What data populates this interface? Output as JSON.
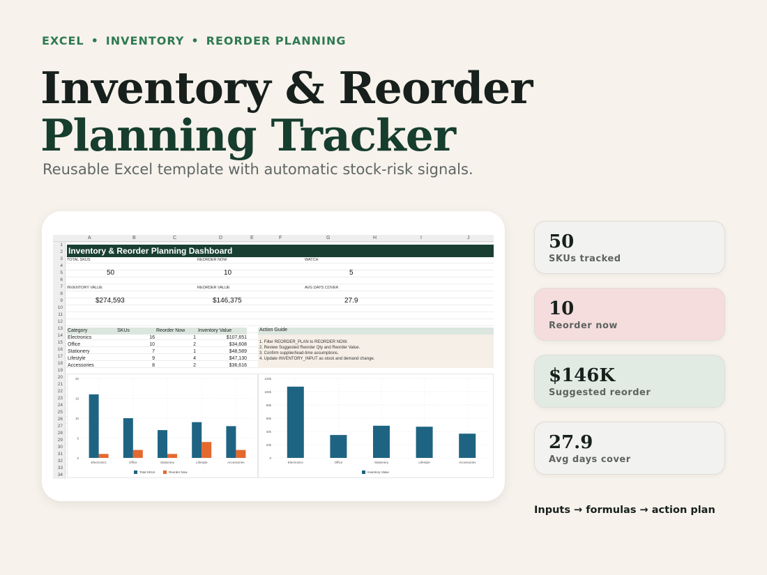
{
  "header": {
    "eyebrow": [
      "EXCEL",
      "INVENTORY",
      "REORDER PLANNING"
    ],
    "eyebrow_sep": "•",
    "title_line1": "Inventory & Reorder",
    "title_line2": "Planning Tracker",
    "subtitle": "Reusable Excel template with automatic stock-risk signals."
  },
  "colors": {
    "accent": "#2e7a52",
    "band": "#183f32",
    "bar_primary": "#1e6482",
    "bar_secondary": "#e3692f"
  },
  "sheet": {
    "columns": [
      "A",
      "B",
      "C",
      "D",
      "E",
      "F",
      "G",
      "H",
      "I",
      "J"
    ],
    "rows": [
      "1",
      "2",
      "3",
      "4",
      "5",
      "6",
      "7",
      "8",
      "9",
      "10",
      "11",
      "12",
      "13",
      "14",
      "15",
      "16",
      "17",
      "18",
      "19",
      "20",
      "21",
      "22",
      "23",
      "24",
      "25",
      "26",
      "27",
      "28",
      "29",
      "30",
      "31",
      "32",
      "33",
      "34"
    ],
    "dashboard_title": "Inventory & Reorder Planning Dashboard",
    "kpis": [
      {
        "label": "TOTAL SKUS",
        "value": "50"
      },
      {
        "label": "REORDER NOW",
        "value": "10"
      },
      {
        "label": "WATCH",
        "value": "5"
      },
      {
        "label": "INVENTORY VALUE",
        "value": "$274,593"
      },
      {
        "label": "REORDER VALUE",
        "value": "$146,375"
      },
      {
        "label": "AVG DAYS COVER",
        "value": "27.9"
      }
    ],
    "table_headers": [
      "Category",
      "SKUs",
      "Reorder Now",
      "Inventory Value"
    ],
    "table_rows": [
      [
        "Electronics",
        "16",
        "1",
        "$107,651"
      ],
      [
        "Office",
        "10",
        "2",
        "$34,608"
      ],
      [
        "Stationery",
        "7",
        "1",
        "$48,589"
      ],
      [
        "Lifestyle",
        "9",
        "4",
        "$47,130"
      ],
      [
        "Accessories",
        "8",
        "2",
        "$36,616"
      ]
    ],
    "action_guide": {
      "title": "Action Guide",
      "items": [
        "1. Filter REORDER_PLAN to REORDER NOW.",
        "2. Review Suggested Reorder Qty and Reorder Value.",
        "3. Confirm supplier/lead-time assumptions.",
        "4. Update INVENTORY_INPUT as stock and demand change."
      ]
    }
  },
  "chart_data": [
    {
      "type": "bar",
      "categories": [
        "Electronics",
        "Office",
        "Stationery",
        "Lifestyle",
        "Accessories"
      ],
      "series": [
        {
          "name": "Total SKUs",
          "values": [
            16,
            10,
            7,
            9,
            8
          ]
        },
        {
          "name": "Reorder Now",
          "values": [
            1,
            2,
            1,
            4,
            2
          ]
        }
      ],
      "ylim": [
        0,
        20
      ],
      "yticks": [
        "0",
        "5",
        "10",
        "15",
        "20"
      ],
      "grid": true,
      "legend": "bottom"
    },
    {
      "type": "bar",
      "categories": [
        "Electronics",
        "Office",
        "Stationery",
        "Lifestyle",
        "Accessories"
      ],
      "series": [
        {
          "name": "Inventory Value",
          "values": [
            107651,
            34608,
            48589,
            47130,
            36616
          ]
        }
      ],
      "ylim": [
        0,
        120000
      ],
      "yticks": [
        "0",
        "20k",
        "40k",
        "60k",
        "80k",
        "100k",
        "120k"
      ],
      "grid": true,
      "legend": "bottom"
    }
  ],
  "stats": [
    {
      "value": "50",
      "label": "SKUs tracked",
      "bg": "#f2f2f1"
    },
    {
      "value": "10",
      "label": "Reorder now",
      "bg": "#f5dddd"
    },
    {
      "value": "$146K",
      "label": "Suggested reorder",
      "bg": "#e1ebe4"
    },
    {
      "value": "27.9",
      "label": "Avg days cover",
      "bg": "#f2f2f1"
    }
  ],
  "footnote": "Inputs → formulas → action plan"
}
